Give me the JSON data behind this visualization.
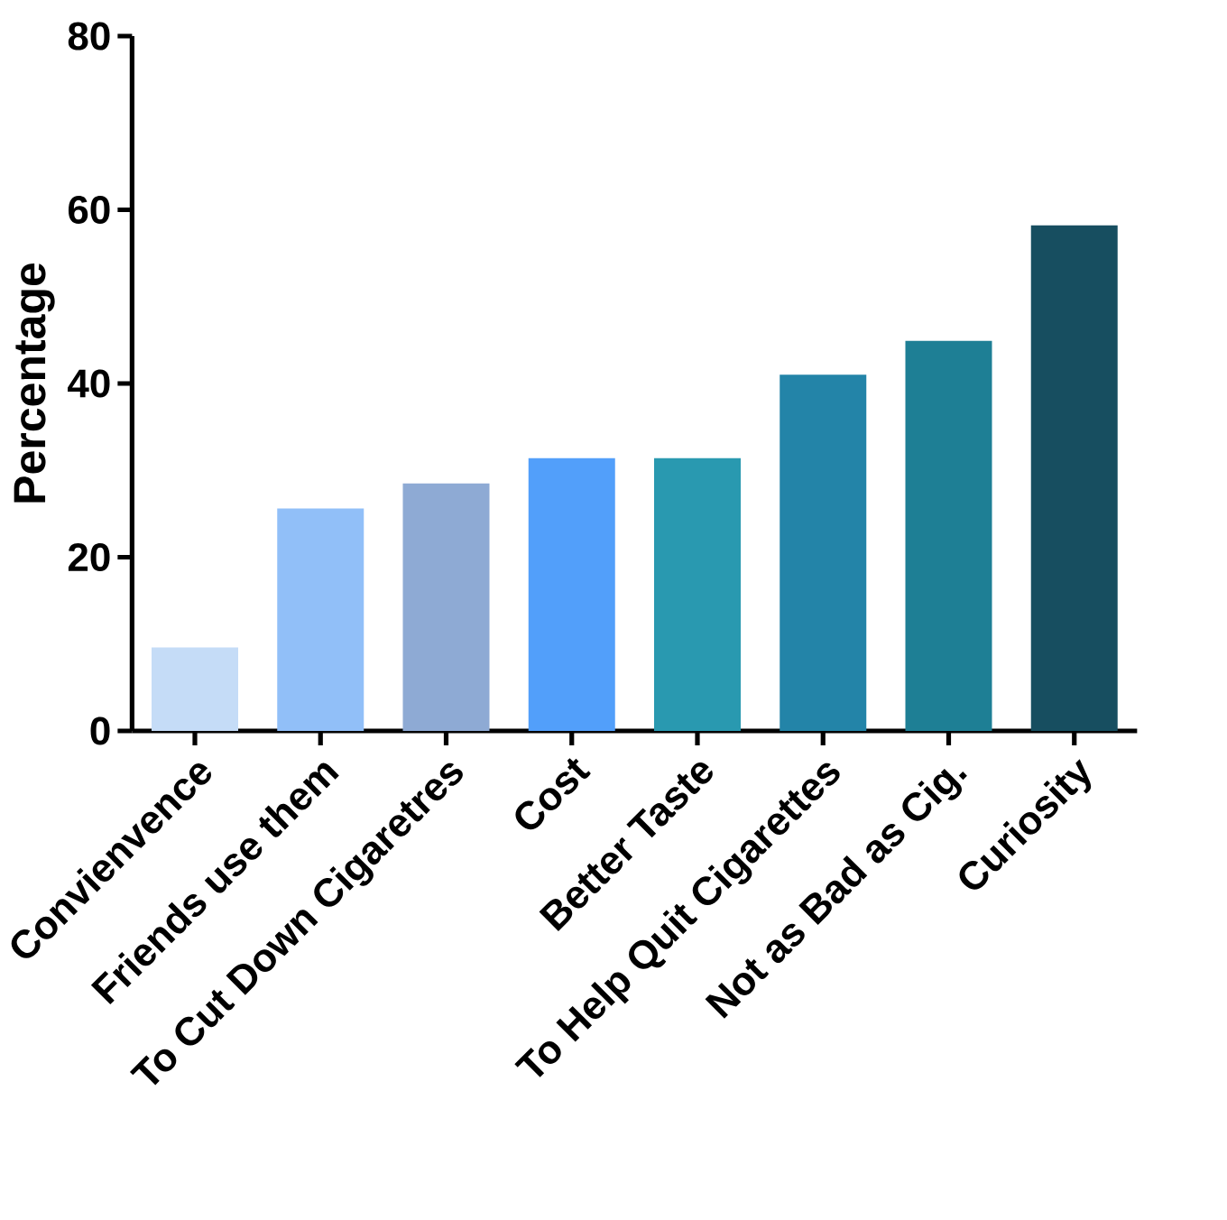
{
  "chart_data": {
    "type": "bar",
    "ylabel": "Percentage",
    "categories": [
      "Convienvence",
      "Friends use them",
      "To Cut Down Cigaretres",
      "Cost",
      "Better Taste",
      "To Help Quit Cigarettes",
      "Not as Bad as Cig.",
      "Curiosity"
    ],
    "values": [
      9.6,
      25.6,
      28.5,
      31.4,
      31.4,
      41.0,
      44.9,
      58.2
    ],
    "colors": [
      "#c5dcf7",
      "#91bff8",
      "#8eaad4",
      "#529ffa",
      "#2999b0",
      "#2384a8",
      "#1e7f95",
      "#174e60"
    ],
    "ylim": [
      0,
      80
    ],
    "yticks": [
      0,
      20,
      40,
      60,
      80
    ],
    "grid": false
  }
}
